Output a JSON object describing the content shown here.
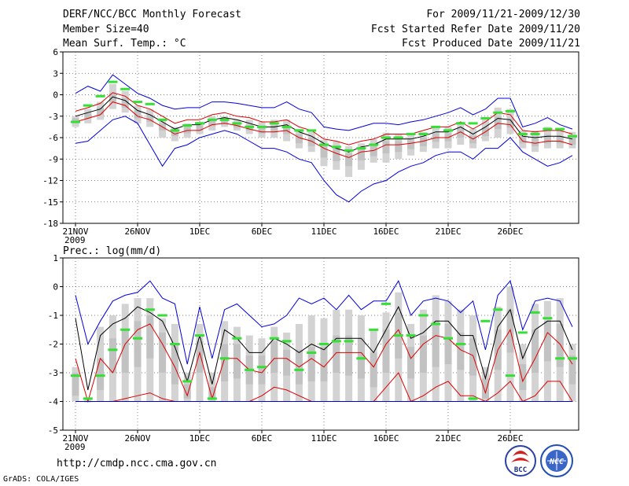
{
  "header": {
    "title": "DERF/NCC/BCC Monthly Forecast",
    "member_size": "Member Size=40",
    "variable": "Mean Surf. Temp.: °C",
    "period": "For 2009/11/21-2009/12/30",
    "fcst_started": "Fcst Started Refer Date 2009/11/20",
    "fcst_produced": "Fcst Produced Date 2009/11/21"
  },
  "footer": {
    "url": "http://cmdp.ncc.cma.gov.cn",
    "grads": "GrADS: COLA/IGES",
    "logo_bcc": "BCC",
    "logo_ncc": "NCC"
  },
  "colors": {
    "ensemble_bar": "#d3d3d3",
    "observed": "#33e033",
    "mean": "#000000",
    "spread": "#dd0000",
    "envelope": "#0000dd"
  },
  "chart_data": [
    {
      "type": "line",
      "title": "Mean Surf. Temp.: °C",
      "ylabel": "°C",
      "ylim": [
        -18,
        6
      ],
      "yticks": [
        6,
        3,
        0,
        -3,
        -6,
        -9,
        -12,
        -15,
        -18
      ],
      "ytick_labels": [
        "6",
        "3",
        "0",
        "-3",
        "-6",
        "-9",
        "-12",
        "-15",
        "-18"
      ],
      "xlim": [
        0,
        40
      ],
      "xticks": [
        {
          "x": 0,
          "label": "21NOV",
          "sub": "2009"
        },
        {
          "x": 5,
          "label": "26NOV"
        },
        {
          "x": 10,
          "label": "1DEC"
        },
        {
          "x": 15,
          "label": "6DEC"
        },
        {
          "x": 20,
          "label": "11DEC"
        },
        {
          "x": 25,
          "label": "16DEC"
        },
        {
          "x": 30,
          "label": "21DEC"
        },
        {
          "x": 35,
          "label": "26DEC"
        }
      ],
      "grid": true,
      "series": [
        {
          "name": "max",
          "values": [
            0.2,
            1.2,
            0.5,
            2.8,
            1.5,
            0.2,
            -0.5,
            -1.5,
            -2.0,
            -1.8,
            -1.8,
            -1.0,
            -1.0,
            -1.2,
            -1.5,
            -1.8,
            -1.8,
            -1.0,
            -2.0,
            -2.5,
            -4.5,
            -4.8,
            -5.0,
            -4.5,
            -4.0,
            -4.0,
            -4.2,
            -3.8,
            -3.5,
            -3.0,
            -2.5,
            -1.8,
            -2.8,
            -2.0,
            -0.5,
            -0.5,
            -4.5,
            -4.0,
            -3.2,
            -4.2,
            -4.8
          ]
        },
        {
          "name": "upper",
          "values": [
            -2.3,
            -1.8,
            -1.2,
            0.3,
            -0.2,
            -1.5,
            -2.0,
            -3.0,
            -4.0,
            -3.5,
            -3.5,
            -2.8,
            -2.5,
            -3.0,
            -3.2,
            -3.8,
            -3.8,
            -3.5,
            -4.5,
            -5.0,
            -6.2,
            -6.5,
            -7.0,
            -6.5,
            -6.2,
            -5.5,
            -5.5,
            -5.5,
            -5.0,
            -4.5,
            -4.5,
            -3.8,
            -4.8,
            -3.8,
            -2.5,
            -2.8,
            -5.0,
            -5.2,
            -5.0,
            -5.0,
            -5.5
          ]
        },
        {
          "name": "mean",
          "values": [
            -3.0,
            -2.5,
            -2.0,
            -0.3,
            -0.8,
            -2.2,
            -2.8,
            -3.8,
            -4.8,
            -4.2,
            -4.2,
            -3.5,
            -3.2,
            -3.5,
            -4.0,
            -4.5,
            -4.5,
            -4.2,
            -5.2,
            -5.8,
            -6.8,
            -7.5,
            -8.0,
            -7.3,
            -7.0,
            -6.2,
            -6.2,
            -6.2,
            -5.8,
            -5.2,
            -5.2,
            -4.5,
            -5.5,
            -4.5,
            -3.3,
            -3.5,
            -5.8,
            -6.0,
            -5.8,
            -5.8,
            -6.2
          ]
        },
        {
          "name": "lower",
          "values": [
            -3.8,
            -3.3,
            -2.8,
            -1.0,
            -1.5,
            -3.0,
            -3.5,
            -4.5,
            -5.5,
            -5.0,
            -5.0,
            -4.2,
            -4.0,
            -4.3,
            -4.8,
            -5.2,
            -5.2,
            -5.0,
            -6.0,
            -6.5,
            -7.5,
            -8.2,
            -8.8,
            -8.0,
            -7.8,
            -7.0,
            -7.0,
            -6.8,
            -6.5,
            -6.0,
            -6.0,
            -5.2,
            -6.2,
            -5.2,
            -4.0,
            -4.2,
            -6.5,
            -6.8,
            -6.5,
            -6.5,
            -7.0
          ]
        },
        {
          "name": "min",
          "values": [
            -6.8,
            -6.5,
            -5.0,
            -3.5,
            -3.0,
            -4.0,
            -7.0,
            -10.0,
            -7.5,
            -7.0,
            -6.0,
            -5.5,
            -5.0,
            -5.5,
            -6.5,
            -7.5,
            -7.5,
            -8.0,
            -9.0,
            -9.5,
            -12.0,
            -14.0,
            -15.0,
            -13.5,
            -12.5,
            -12.0,
            -10.8,
            -10.0,
            -9.5,
            -8.5,
            -8.0,
            -8.0,
            -9.0,
            -7.5,
            -7.5,
            -6.0,
            -8.0,
            -9.0,
            -10.0,
            -9.5,
            -8.5
          ]
        }
      ],
      "observed": [
        -3.8,
        -1.5,
        -0.2,
        1.8,
        0.8,
        -1.0,
        -1.3,
        -3.5,
        -5.0,
        -4.3,
        -4.0,
        -3.5,
        -3.5,
        -4.0,
        -4.5,
        -4.5,
        -4.0,
        -4.5,
        -5.0,
        -5.0,
        -7.0,
        -7.3,
        -7.8,
        -7.5,
        -7.0,
        -6.0,
        -6.0,
        -5.5,
        -5.5,
        -4.5,
        -5.0,
        -4.0,
        -4.0,
        -3.3,
        -2.5,
        -2.3,
        -5.5,
        -5.5,
        -4.8,
        -4.8,
        -5.8
      ],
      "ensemble_box": {
        "top": [
          -3.0,
          -2.0,
          -1.0,
          1.5,
          0.5,
          -1.5,
          -2.0,
          -3.5,
          -4.5,
          -4.0,
          -3.8,
          -3.0,
          -3.0,
          -3.5,
          -3.5,
          -3.8,
          -3.5,
          -3.5,
          -4.8,
          -5.2,
          -6.3,
          -6.5,
          -7.2,
          -6.8,
          -6.2,
          -5.3,
          -5.5,
          -5.5,
          -5.2,
          -4.5,
          -4.5,
          -3.8,
          -4.8,
          -3.5,
          -1.8,
          -2.0,
          -5.0,
          -5.0,
          -4.5,
          -4.8,
          -5.2
        ],
        "bottom": [
          -4.5,
          -4.0,
          -3.5,
          -2.0,
          -2.5,
          -4.0,
          -4.5,
          -6.0,
          -6.5,
          -6.0,
          -5.5,
          -5.0,
          -4.5,
          -5.0,
          -5.5,
          -6.0,
          -6.0,
          -6.5,
          -7.5,
          -8.0,
          -10.0,
          -10.5,
          -11.5,
          -10.5,
          -9.5,
          -9.5,
          -9.0,
          -8.5,
          -8.0,
          -7.5,
          -7.5,
          -7.0,
          -7.5,
          -6.5,
          -6.0,
          -5.5,
          -7.5,
          -8.0,
          -7.5,
          -7.5,
          -7.5
        ],
        "q_top": [
          -3.3,
          -2.6,
          -1.8,
          0.2,
          -0.5,
          -2.2,
          -2.8,
          -4.0,
          -5.0,
          -4.5,
          -4.3,
          -3.6,
          -3.4,
          -4.0,
          -4.2,
          -4.5,
          -4.3,
          -4.4,
          -5.5,
          -6.0,
          -7.2,
          -7.5,
          -8.2,
          -7.6,
          -7.2,
          -6.5,
          -6.5,
          -6.4,
          -6.0,
          -5.4,
          -5.4,
          -4.7,
          -5.7,
          -4.6,
          -3.0,
          -3.3,
          -5.8,
          -6.0,
          -5.6,
          -5.8,
          -6.0
        ],
        "q_bottom": [
          -4.0,
          -3.3,
          -2.8,
          -1.0,
          -1.8,
          -3.3,
          -3.8,
          -5.0,
          -5.8,
          -5.4,
          -5.0,
          -4.4,
          -4.1,
          -4.6,
          -5.0,
          -5.4,
          -5.3,
          -5.5,
          -6.8,
          -7.2,
          -8.8,
          -9.3,
          -10.0,
          -9.2,
          -8.6,
          -8.2,
          -8.0,
          -7.6,
          -7.2,
          -6.6,
          -6.5,
          -6.0,
          -6.8,
          -5.8,
          -4.8,
          -4.6,
          -6.8,
          -7.2,
          -6.8,
          -6.8,
          -7.0
        ]
      }
    },
    {
      "type": "line",
      "title": "Prec.: log(mm/d)",
      "ylabel": "log(mm/d)",
      "ylim": [
        -5,
        1
      ],
      "yticks": [
        1,
        0,
        -1,
        -2,
        -3,
        -4,
        -5
      ],
      "ytick_labels": [
        "1",
        "0",
        "-1",
        "-2",
        "-3",
        "-4",
        "-5"
      ],
      "xlim": [
        0,
        40
      ],
      "xticks": [
        {
          "x": 0,
          "label": "21NOV",
          "sub": "2009"
        },
        {
          "x": 5,
          "label": "26NOV"
        },
        {
          "x": 10,
          "label": "1DEC"
        },
        {
          "x": 15,
          "label": "6DEC"
        },
        {
          "x": 20,
          "label": "11DEC"
        },
        {
          "x": 25,
          "label": "16DEC"
        },
        {
          "x": 30,
          "label": "21DEC"
        },
        {
          "x": 35,
          "label": "26DEC"
        }
      ],
      "grid": true,
      "series": [
        {
          "name": "max",
          "values": [
            -0.3,
            -2.0,
            -1.2,
            -0.5,
            -0.3,
            -0.2,
            0.2,
            -0.4,
            -0.6,
            -2.7,
            -0.7,
            -2.5,
            -0.8,
            -0.6,
            -1.0,
            -1.4,
            -1.3,
            -1.0,
            -0.4,
            -0.6,
            -0.4,
            -0.8,
            -0.3,
            -0.8,
            -0.5,
            -0.5,
            0.2,
            -1.0,
            -0.5,
            -0.4,
            -0.5,
            -0.9,
            -0.5,
            -2.2,
            -0.3,
            0.2,
            -1.5,
            -0.5,
            -0.4,
            -0.5,
            -1.4
          ]
        },
        {
          "name": "mean",
          "values": [
            -1.1,
            -3.6,
            -1.7,
            -1.3,
            -1.1,
            -0.7,
            -0.9,
            -1.2,
            -2.1,
            -3.3,
            -1.7,
            -3.4,
            -1.5,
            -1.8,
            -2.3,
            -2.3,
            -1.8,
            -2.0,
            -2.3,
            -2.0,
            -2.2,
            -1.8,
            -1.8,
            -1.8,
            -2.3,
            -1.5,
            -0.7,
            -1.8,
            -1.6,
            -1.2,
            -1.2,
            -1.7,
            -1.7,
            -3.2,
            -1.4,
            -0.8,
            -2.5,
            -1.5,
            -1.2,
            -1.2,
            -2.2
          ]
        },
        {
          "name": "upper",
          "values": [
            -2.5,
            -4.0,
            -2.5,
            -3.0,
            -2.0,
            -1.5,
            -1.3,
            -2.0,
            -2.8,
            -3.8,
            -2.3,
            -3.9,
            -2.5,
            -2.5,
            -2.9,
            -3.0,
            -2.5,
            -2.5,
            -2.8,
            -2.5,
            -2.8,
            -2.3,
            -2.3,
            -2.3,
            -2.8,
            -2.0,
            -1.5,
            -2.5,
            -2.0,
            -1.7,
            -1.8,
            -2.2,
            -2.4,
            -3.7,
            -2.2,
            -1.5,
            -3.3,
            -2.5,
            -1.6,
            -2.0,
            -2.7
          ]
        },
        {
          "name": "lower",
          "values": [
            -4.0,
            -4.0,
            -4.0,
            -4.0,
            -3.9,
            -3.8,
            -3.7,
            -3.9,
            -4.0,
            -4.0,
            -4.0,
            -4.0,
            -4.0,
            -4.0,
            -4.0,
            -3.8,
            -3.5,
            -3.6,
            -3.8,
            -4.0,
            -4.0,
            -4.0,
            -4.0,
            -4.0,
            -4.0,
            -3.5,
            -3.0,
            -4.0,
            -3.8,
            -3.5,
            -3.3,
            -3.8,
            -3.8,
            -4.0,
            -3.7,
            -3.3,
            -4.0,
            -3.8,
            -3.3,
            -3.3,
            -4.0
          ]
        },
        {
          "name": "min",
          "values": [
            -4.0,
            -4.0,
            -4.0,
            -4.0,
            -4.0,
            -4.0,
            -4.0,
            -4.0,
            -4.0,
            -4.0,
            -4.0,
            -4.0,
            -4.0,
            -4.0,
            -4.0,
            -4.0,
            -4.0,
            -4.0,
            -4.0,
            -4.0,
            -4.0,
            -4.0,
            -4.0,
            -4.0,
            -4.0,
            -4.0,
            -4.0,
            -4.0,
            -4.0,
            -4.0,
            -4.0,
            -4.0,
            -4.0,
            -4.0,
            -4.0,
            -4.0,
            -4.0,
            -4.0,
            -4.0,
            -4.0,
            -4.0
          ]
        }
      ],
      "observed": [
        -3.1,
        -3.9,
        -3.1,
        -2.2,
        -1.5,
        -1.8,
        -0.8,
        -1.0,
        -2.0,
        -3.3,
        -1.7,
        -3.9,
        -2.5,
        -1.8,
        -2.9,
        -2.8,
        -1.8,
        -1.9,
        -2.9,
        -2.3,
        -2.0,
        -1.9,
        -1.9,
        -2.5,
        -1.5,
        -0.6,
        -1.7,
        -1.7,
        -1.0,
        -1.3,
        -1.8,
        -2.0,
        -3.9,
        -1.2,
        -0.8,
        -3.1,
        -1.6,
        -0.9,
        -1.1,
        -2.5,
        -2.5
      ],
      "ensemble_box": {
        "top": [
          -2.8,
          -3.9,
          -1.4,
          -1.0,
          -0.6,
          -0.4,
          -0.4,
          -1.1,
          -1.3,
          -3.0,
          -1.3,
          -3.0,
          -1.2,
          -1.4,
          -1.7,
          -1.8,
          -1.4,
          -1.6,
          -1.3,
          -1.0,
          -1.1,
          -0.8,
          -0.8,
          -1.0,
          -1.5,
          -0.9,
          -0.2,
          -1.3,
          -0.8,
          -0.3,
          -0.5,
          -0.8,
          -1.0,
          -2.8,
          -0.7,
          0.0,
          -2.0,
          -0.6,
          -0.5,
          -0.4,
          -2.0
        ],
        "bottom": [
          -4.0,
          -4.0,
          -4.0,
          -4.0,
          -4.0,
          -4.0,
          -4.0,
          -4.0,
          -4.0,
          -4.0,
          -4.0,
          -4.0,
          -4.0,
          -4.0,
          -4.0,
          -4.0,
          -4.0,
          -4.0,
          -4.0,
          -4.0,
          -4.0,
          -4.0,
          -4.0,
          -4.0,
          -4.0,
          -4.0,
          -4.0,
          -4.0,
          -4.0,
          -4.0,
          -4.0,
          -4.0,
          -4.0,
          -4.0,
          -4.0,
          -4.0,
          -4.0,
          -4.0,
          -4.0,
          -4.0,
          -4.0
        ],
        "q_top": [
          -3.0,
          -4.0,
          -2.5,
          -1.8,
          -1.5,
          -1.2,
          -1.0,
          -1.6,
          -2.0,
          -3.4,
          -1.9,
          -3.5,
          -2.0,
          -2.0,
          -2.4,
          -2.4,
          -1.9,
          -2.2,
          -2.2,
          -2.1,
          -2.1,
          -1.7,
          -1.7,
          -1.8,
          -2.3,
          -1.5,
          -0.9,
          -2.1,
          -1.7,
          -1.2,
          -1.3,
          -1.6,
          -1.8,
          -3.2,
          -1.5,
          -0.8,
          -2.7,
          -1.5,
          -1.2,
          -1.3,
          -2.4
        ],
        "q_bottom": [
          -3.8,
          -4.0,
          -3.6,
          -3.0,
          -3.0,
          -2.8,
          -2.5,
          -3.0,
          -3.4,
          -3.9,
          -3.0,
          -3.9,
          -3.3,
          -3.2,
          -3.4,
          -3.4,
          -3.0,
          -3.1,
          -3.4,
          -3.3,
          -3.3,
          -3.0,
          -3.1,
          -3.2,
          -3.5,
          -3.0,
          -2.5,
          -3.2,
          -3.0,
          -2.8,
          -2.7,
          -2.9,
          -3.1,
          -3.9,
          -2.9,
          -2.3,
          -3.6,
          -3.0,
          -2.6,
          -2.8,
          -3.4
        ]
      }
    }
  ]
}
